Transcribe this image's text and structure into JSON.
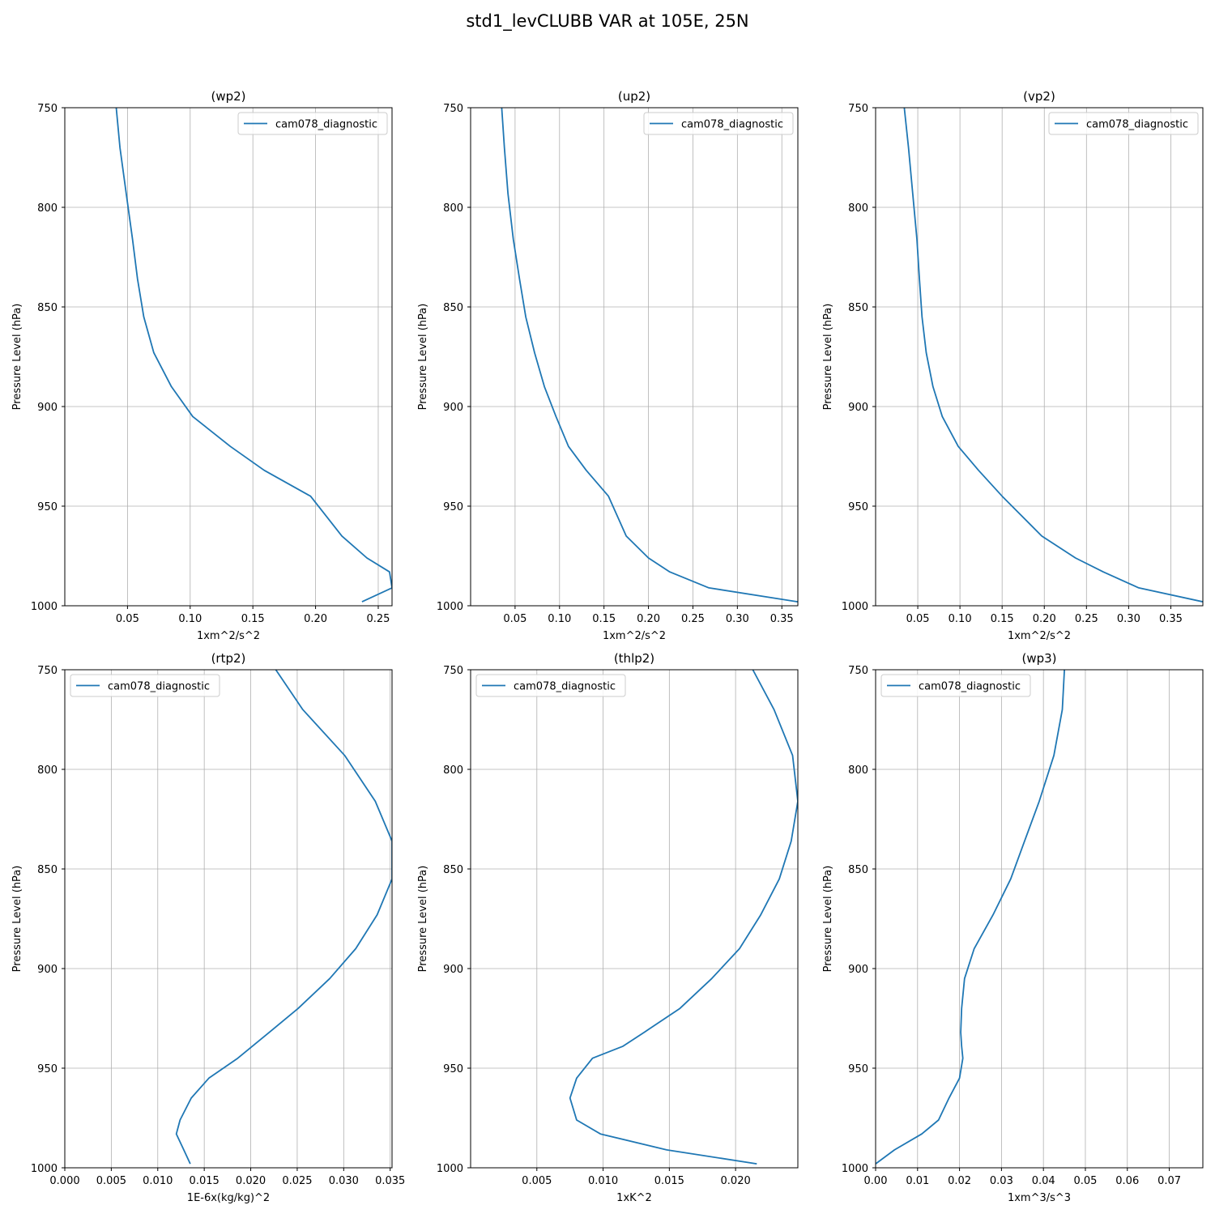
{
  "figure": {
    "title": "std1_levCLUBB VAR at 105E, 25N"
  },
  "style": {
    "series_color": "#1f77b4",
    "grid_color": "#b0b0b0"
  },
  "chart_data": [
    {
      "type": "line",
      "title": "(wp2)",
      "xlabel": "1xm^2/s^2",
      "ylabel": "Pressure Level (hPa)",
      "xlim": [
        0.0,
        0.261
      ],
      "ylim": [
        1000,
        750
      ],
      "xticks": [
        0.05,
        0.1,
        0.15,
        0.2,
        0.25
      ],
      "xtick_labels": [
        "0.05",
        "0.10",
        "0.15",
        "0.20",
        "0.25"
      ],
      "yticks": [
        750,
        800,
        850,
        900,
        950,
        1000
      ],
      "ytick_labels": [
        "750",
        "800",
        "850",
        "900",
        "950",
        "1000"
      ],
      "grid": true,
      "legend": "upper-right",
      "series": [
        {
          "name": "cam078_diagnostic",
          "x": [
            0.041,
            0.044,
            0.049,
            0.054,
            0.058,
            0.063,
            0.071,
            0.085,
            0.102,
            0.132,
            0.159,
            0.196,
            0.221,
            0.241,
            0.259,
            0.261,
            0.237
          ],
          "y": [
            750,
            770,
            793,
            816,
            836,
            855,
            873,
            890,
            905,
            920,
            932,
            945,
            965,
            976,
            983,
            991,
            998
          ]
        }
      ]
    },
    {
      "type": "line",
      "title": "(up2)",
      "xlabel": "1xm^2/s^2",
      "ylabel": "Pressure Level (hPa)",
      "xlim": [
        0.0,
        0.368
      ],
      "ylim": [
        1000,
        750
      ],
      "xticks": [
        0.05,
        0.1,
        0.15,
        0.2,
        0.25,
        0.3,
        0.35
      ],
      "xtick_labels": [
        "0.05",
        "0.10",
        "0.15",
        "0.20",
        "0.25",
        "0.30",
        "0.35"
      ],
      "yticks": [
        750,
        800,
        850,
        900,
        950,
        1000
      ],
      "ytick_labels": [
        "750",
        "800",
        "850",
        "900",
        "950",
        "1000"
      ],
      "grid": true,
      "legend": "upper-right",
      "series": [
        {
          "name": "cam078_diagnostic",
          "x": [
            0.035,
            0.038,
            0.042,
            0.048,
            0.055,
            0.062,
            0.072,
            0.083,
            0.096,
            0.11,
            0.13,
            0.155,
            0.175,
            0.2,
            0.224,
            0.268,
            0.368
          ],
          "y": [
            750,
            770,
            793,
            816,
            836,
            855,
            873,
            890,
            905,
            920,
            932,
            945,
            965,
            976,
            983,
            991,
            998
          ]
        }
      ]
    },
    {
      "type": "line",
      "title": "(vp2)",
      "xlabel": "1xm^2/s^2",
      "ylabel": "Pressure Level (hPa)",
      "xlim": [
        0.0,
        0.388
      ],
      "ylim": [
        1000,
        750
      ],
      "xticks": [
        0.05,
        0.1,
        0.15,
        0.2,
        0.25,
        0.3,
        0.35
      ],
      "xtick_labels": [
        "0.05",
        "0.10",
        "0.15",
        "0.20",
        "0.25",
        "0.30",
        "0.35"
      ],
      "yticks": [
        750,
        800,
        850,
        900,
        950,
        1000
      ],
      "ytick_labels": [
        "750",
        "800",
        "850",
        "900",
        "950",
        "1000"
      ],
      "grid": true,
      "legend": "upper-right",
      "series": [
        {
          "name": "cam078_diagnostic",
          "x": [
            0.034,
            0.039,
            0.044,
            0.049,
            0.052,
            0.055,
            0.06,
            0.068,
            0.079,
            0.098,
            0.122,
            0.15,
            0.197,
            0.237,
            0.27,
            0.312,
            0.388
          ],
          "y": [
            750,
            770,
            793,
            816,
            836,
            855,
            873,
            890,
            905,
            920,
            932,
            945,
            965,
            976,
            983,
            991,
            998
          ]
        }
      ]
    },
    {
      "type": "line",
      "title": "(rtp2)",
      "xlabel": "1E-6x(kg/kg)^2",
      "ylabel": "Pressure Level (hPa)",
      "xlim": [
        0.0,
        0.0352
      ],
      "ylim": [
        1000,
        750
      ],
      "xticks": [
        0.0,
        0.005,
        0.01,
        0.015,
        0.02,
        0.025,
        0.03,
        0.035
      ],
      "xtick_labels": [
        "0.000",
        "0.005",
        "0.010",
        "0.015",
        "0.020",
        "0.025",
        "0.030",
        "0.035"
      ],
      "yticks": [
        750,
        800,
        850,
        900,
        950,
        1000
      ],
      "ytick_labels": [
        "750",
        "800",
        "850",
        "900",
        "950",
        "1000"
      ],
      "grid": true,
      "legend": "upper-left",
      "series": [
        {
          "name": "cam078_diagnostic",
          "x": [
            0.0227,
            0.0256,
            0.0301,
            0.0334,
            0.0352,
            0.0352,
            0.0336,
            0.0313,
            0.0285,
            0.0251,
            0.022,
            0.0186,
            0.0155,
            0.0136,
            0.0124,
            0.012,
            0.0128,
            0.0135
          ],
          "y": [
            750,
            770,
            793,
            816,
            836,
            855,
            873,
            890,
            905,
            920,
            932,
            945,
            955,
            965,
            976,
            983,
            991,
            998
          ]
        }
      ]
    },
    {
      "type": "line",
      "title": "(thlp2)",
      "xlabel": "1xK^2",
      "ylabel": "Pressure Level (hPa)",
      "xlim": [
        0.0,
        0.0247
      ],
      "ylim": [
        1000,
        750
      ],
      "xticks": [
        0.005,
        0.01,
        0.015,
        0.02
      ],
      "xtick_labels": [
        "0.005",
        "0.010",
        "0.015",
        "0.020"
      ],
      "yticks": [
        750,
        800,
        850,
        900,
        950,
        1000
      ],
      "ytick_labels": [
        "750",
        "800",
        "850",
        "900",
        "950",
        "1000"
      ],
      "grid": true,
      "legend": "upper-left",
      "series": [
        {
          "name": "cam078_diagnostic",
          "x": [
            0.0213,
            0.0229,
            0.0243,
            0.0247,
            0.0242,
            0.0233,
            0.0219,
            0.0203,
            0.0182,
            0.0158,
            0.0131,
            0.0115,
            0.0092,
            0.008,
            0.0075,
            0.008,
            0.0098,
            0.0148,
            0.0216
          ],
          "y": [
            750,
            770,
            793,
            816,
            836,
            855,
            873,
            890,
            905,
            920,
            932,
            939,
            945,
            955,
            965,
            976,
            983,
            991,
            998
          ]
        }
      ]
    },
    {
      "type": "line",
      "title": "(wp3)",
      "xlabel": "1xm^3/s^3",
      "ylabel": "Pressure Level (hPa)",
      "xlim": [
        0.0,
        0.078
      ],
      "ylim": [
        1000,
        750
      ],
      "xticks": [
        0.0,
        0.01,
        0.02,
        0.03,
        0.04,
        0.05,
        0.06,
        0.07
      ],
      "xtick_labels": [
        "0.00",
        "0.01",
        "0.02",
        "0.03",
        "0.04",
        "0.05",
        "0.06",
        "0.07"
      ],
      "yticks": [
        750,
        800,
        850,
        900,
        950,
        1000
      ],
      "ytick_labels": [
        "750",
        "800",
        "850",
        "900",
        "950",
        "1000"
      ],
      "grid": true,
      "legend": "upper-left",
      "series": [
        {
          "name": "cam078_diagnostic",
          "x": [
            0.045,
            0.0445,
            0.0425,
            0.039,
            0.0355,
            0.0322,
            0.028,
            0.0235,
            0.0212,
            0.0205,
            0.0203,
            0.0205,
            0.0208,
            0.02,
            0.0175,
            0.015,
            0.011,
            0.0045,
            0.0
          ],
          "y": [
            750,
            770,
            793,
            816,
            836,
            855,
            873,
            890,
            905,
            920,
            932,
            939,
            945,
            955,
            965,
            976,
            983,
            991,
            998
          ]
        }
      ]
    }
  ]
}
